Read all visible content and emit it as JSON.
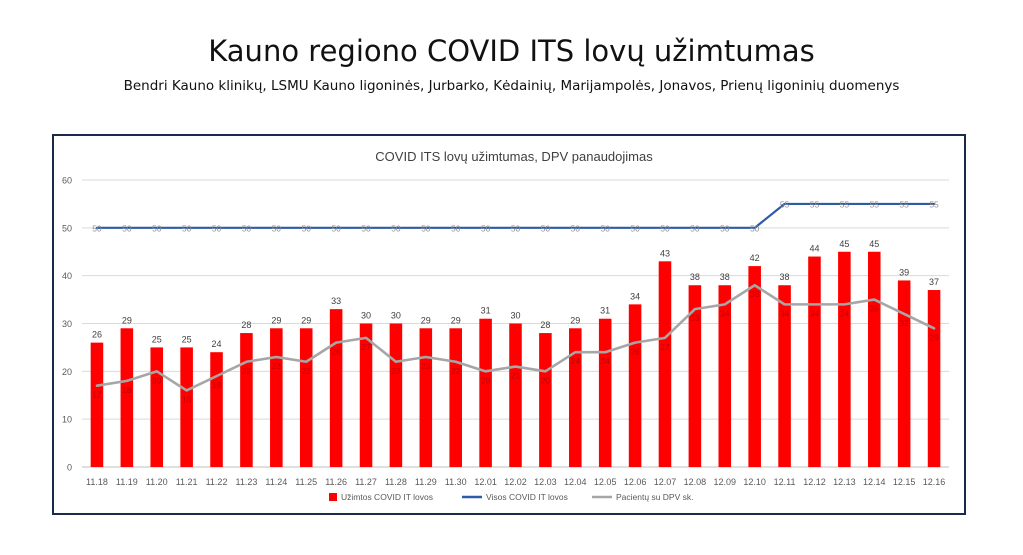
{
  "page": {
    "title": "Kauno regiono COVID ITS lovų užimtumas",
    "subtitle": "Bendri Kauno klinikų, LSMU Kauno ligoninės, Jurbarko, Kėdainių, Marijampolės, Jonavos, Prienų ligoninių duomenys"
  },
  "chart_data": {
    "type": "bar",
    "title": "COVID ITS lovų užimtumas, DPV panaudojimas",
    "xlabel": "",
    "ylabel": "",
    "ylim": [
      0,
      60
    ],
    "yticks": [
      0,
      10,
      20,
      30,
      40,
      50,
      60
    ],
    "grid": true,
    "legend_position": "bottom",
    "categories": [
      "11.18",
      "11.19",
      "11.20",
      "11.21",
      "11.22",
      "11.23",
      "11.24",
      "11.25",
      "11.26",
      "11.27",
      "11.28",
      "11.29",
      "11.30",
      "12.01",
      "12.02",
      "12.03",
      "12.04",
      "12.05",
      "12.06",
      "12.07",
      "12.08",
      "12.09",
      "12.10",
      "12.11",
      "12.12",
      "12.13",
      "12.14",
      "12.15",
      "12.16"
    ],
    "series": [
      {
        "name": "Užimtos COVID IT lovos",
        "kind": "bar",
        "color": "#ff0000",
        "values": [
          26,
          29,
          25,
          25,
          24,
          28,
          29,
          29,
          33,
          30,
          30,
          29,
          29,
          31,
          30,
          28,
          29,
          31,
          34,
          43,
          38,
          38,
          42,
          38,
          44,
          45,
          45,
          39,
          37
        ]
      },
      {
        "name": "Visos COVID IT lovos",
        "kind": "line",
        "color": "#2e5aa8",
        "values": [
          50,
          50,
          50,
          50,
          50,
          50,
          50,
          50,
          50,
          50,
          50,
          50,
          50,
          50,
          50,
          50,
          50,
          50,
          50,
          50,
          50,
          50,
          50,
          55,
          55,
          55,
          55,
          55,
          55
        ]
      },
      {
        "name": "Pacientų su DPV sk.",
        "kind": "line",
        "color": "#a6a6a6",
        "values": [
          17,
          18,
          20,
          16,
          19,
          22,
          23,
          22,
          26,
          27,
          22,
          23,
          22,
          20,
          21,
          20,
          24,
          24,
          26,
          27,
          33,
          34,
          38,
          34,
          34,
          34,
          35,
          32,
          29
        ]
      }
    ]
  }
}
